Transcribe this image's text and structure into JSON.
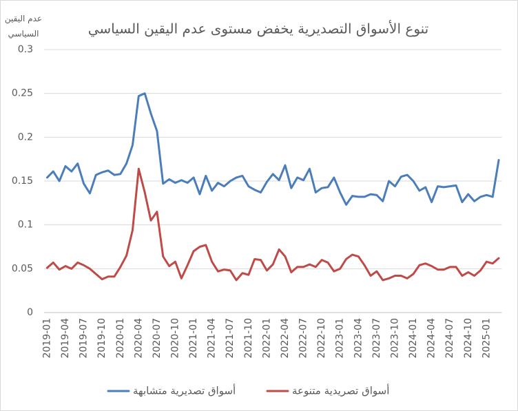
{
  "chart_data": {
    "type": "line",
    "title": "تنوع الأسواق التصديرية يخفض مستوى عدم اليقين السياسي",
    "y_label": "عدم اليقين السياسي",
    "categories": [
      "2019-01",
      null,
      null,
      "2019-04",
      null,
      null,
      "2019-07",
      null,
      null,
      "2019-10",
      null,
      null,
      "2020-01",
      null,
      null,
      "2020-04",
      null,
      null,
      "2020-07",
      null,
      null,
      "2020-10",
      null,
      null,
      "2021-01",
      null,
      null,
      "2021-04",
      null,
      null,
      "2021-07",
      null,
      null,
      "2021-10",
      null,
      null,
      "2022-01",
      null,
      null,
      "2022-04",
      null,
      null,
      "2022-07",
      null,
      null,
      "2022-10",
      null,
      null,
      "2023-01",
      null,
      null,
      "2023-04",
      null,
      null,
      "2023-07",
      null,
      null,
      "2023-10",
      null,
      null,
      "2024-01",
      null,
      null,
      "2024-04",
      null,
      null,
      "2024-07",
      null,
      null,
      "2024-10",
      null,
      null,
      "2025-01",
      null,
      null
    ],
    "series": [
      {
        "name": "أسواق تصديرية متشابهة",
        "color": "#4a7ebb",
        "values": [
          0.154,
          0.161,
          0.15,
          0.167,
          0.161,
          0.17,
          0.147,
          0.136,
          0.157,
          0.16,
          0.162,
          0.157,
          0.158,
          0.17,
          0.191,
          0.247,
          0.25,
          0.227,
          0.207,
          0.147,
          0.152,
          0.148,
          0.151,
          0.148,
          0.154,
          0.135,
          0.156,
          0.139,
          0.148,
          0.144,
          0.15,
          0.154,
          0.156,
          0.144,
          0.14,
          0.137,
          0.149,
          0.158,
          0.151,
          0.168,
          0.142,
          0.154,
          0.151,
          0.164,
          0.137,
          0.142,
          0.143,
          0.154,
          0.137,
          0.123,
          0.133,
          0.132,
          0.132,
          0.135,
          0.134,
          0.127,
          0.15,
          0.144,
          0.155,
          0.157,
          0.15,
          0.139,
          0.143,
          0.126,
          0.144,
          0.143,
          0.144,
          0.145,
          0.126,
          0.135,
          0.127,
          0.132,
          0.134,
          0.132,
          0.174
        ]
      },
      {
        "name": "أسواق تصريدية متنوعة",
        "color": "#be4b48",
        "values": [
          0.051,
          0.057,
          0.049,
          0.053,
          0.05,
          0.057,
          0.054,
          0.05,
          0.044,
          0.038,
          0.041,
          0.041,
          0.052,
          0.065,
          0.094,
          0.164,
          0.137,
          0.105,
          0.115,
          0.064,
          0.053,
          0.058,
          0.039,
          0.054,
          0.07,
          0.075,
          0.077,
          0.058,
          0.047,
          0.049,
          0.048,
          0.037,
          0.045,
          0.043,
          0.061,
          0.06,
          0.048,
          0.055,
          0.072,
          0.064,
          0.046,
          0.052,
          0.052,
          0.055,
          0.052,
          0.06,
          0.057,
          0.047,
          0.05,
          0.061,
          0.066,
          0.064,
          0.054,
          0.042,
          0.047,
          0.037,
          0.039,
          0.042,
          0.042,
          0.039,
          0.044,
          0.054,
          0.056,
          0.053,
          0.049,
          0.049,
          0.052,
          0.052,
          0.042,
          0.046,
          0.042,
          0.048,
          0.058,
          0.056,
          0.062
        ]
      }
    ],
    "ylim": [
      0,
      0.3
    ],
    "yticks": [
      0,
      0.05,
      0.1,
      0.15,
      0.2,
      0.25,
      0.3
    ],
    "grid": true,
    "legend": "bottom"
  }
}
